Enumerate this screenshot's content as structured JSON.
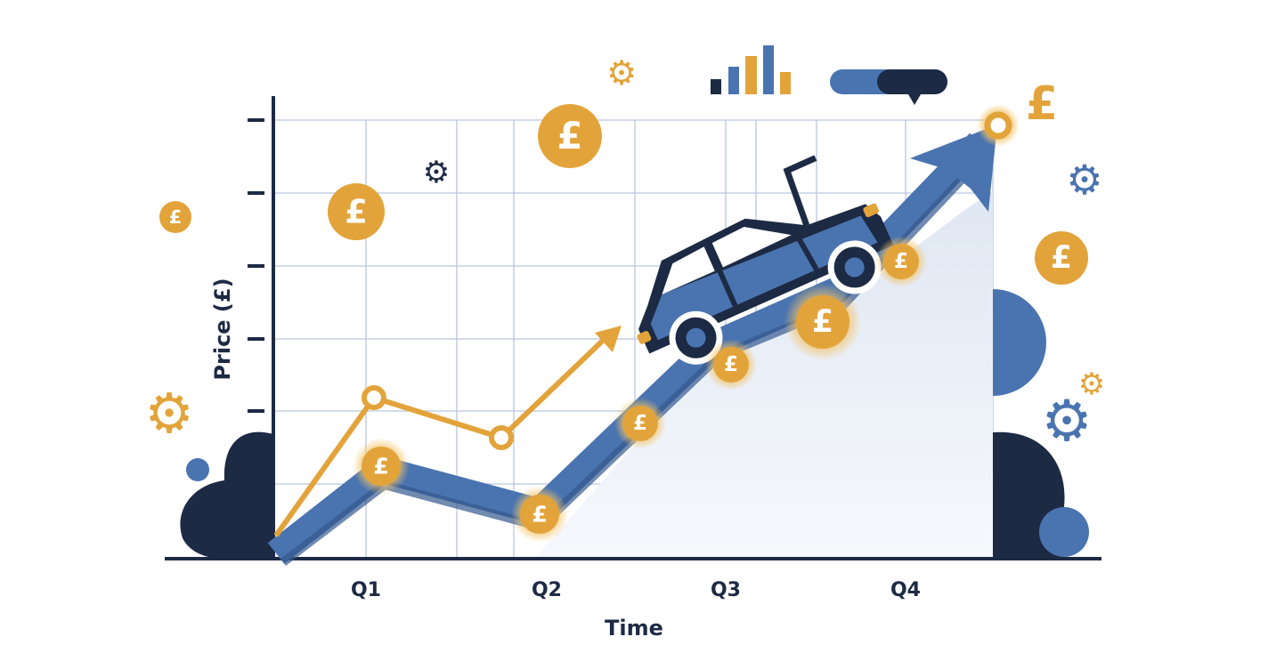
{
  "chart_data": {
    "type": "line",
    "title": "",
    "xlabel": "Time",
    "ylabel": "Price (£)",
    "categories": [
      "Q1",
      "Q2",
      "Q3",
      "Q4"
    ],
    "grid": true,
    "trend": "rising"
  },
  "coin_symbol": "£",
  "colors": {
    "navy": "#1d2a44",
    "blue": "#4a74b0",
    "gold": "#e2a43a",
    "grid": "#b8c6de",
    "area": "#e6edf7"
  },
  "icons": [
    "gear-icon",
    "pound-coin-icon",
    "car-icon",
    "bar-chart-icon",
    "toggle-icon",
    "trend-arrow-icon"
  ]
}
